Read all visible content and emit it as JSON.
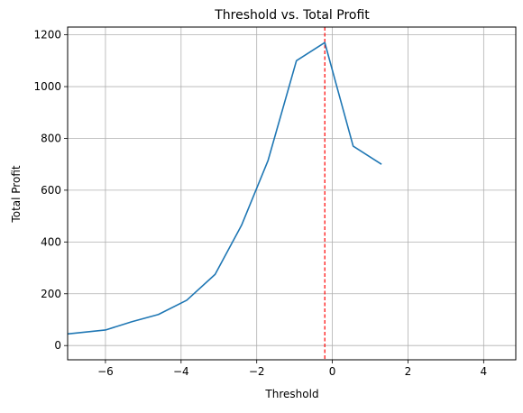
{
  "chart_data": {
    "type": "line",
    "title": "Threshold vs. Total Profit",
    "xlabel": "Threshold",
    "ylabel": "Total Profit",
    "xlim": [
      -7.0,
      4.85
    ],
    "ylim": [
      -55,
      1230
    ],
    "xticks": [
      -6,
      -4,
      -2,
      0,
      2,
      4
    ],
    "yticks": [
      0,
      200,
      400,
      600,
      800,
      1000,
      1200
    ],
    "grid": true,
    "series": [
      {
        "color": "#1f77b4",
        "x": [
          -7.0,
          -6.0,
          -5.3,
          -4.6,
          -3.85,
          -3.1,
          -2.4,
          -1.7,
          -0.95,
          -0.2,
          0.55,
          1.3
        ],
        "y": [
          45,
          60,
          92,
          120,
          175,
          275,
          465,
          715,
          1100,
          1170,
          770,
          700
        ]
      }
    ],
    "annotations": [
      {
        "type": "vline",
        "x": -0.2,
        "color": "#ff0000",
        "style": "dashed"
      }
    ]
  }
}
